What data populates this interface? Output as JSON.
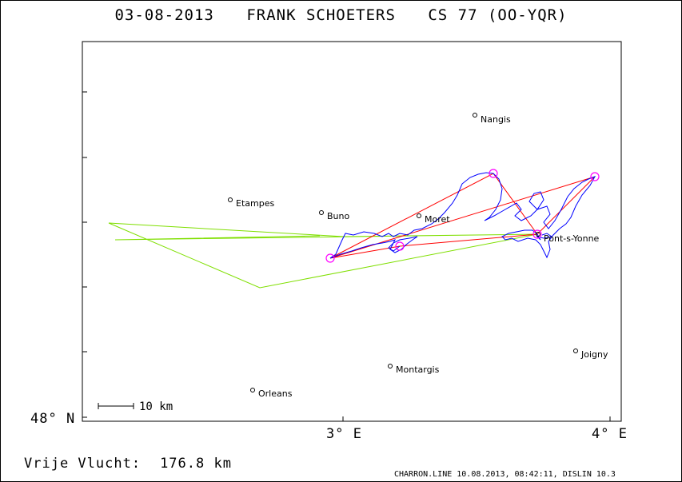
{
  "header": {
    "date": "03-08-2013",
    "pilot": "FRANK SCHOETERS",
    "glider": "CS 77 (OO-YQR)"
  },
  "axes": {
    "lat_label": "48° N",
    "lon_label_1": "3° E",
    "lon_label_2": "4° E"
  },
  "scale_bar": {
    "label": "10 km"
  },
  "towns": [
    {
      "name": "Nangis"
    },
    {
      "name": "Etampes"
    },
    {
      "name": "Buno"
    },
    {
      "name": "Moret"
    },
    {
      "name": "Pont-s-Yonne"
    },
    {
      "name": "Joigny"
    },
    {
      "name": "Montargis"
    },
    {
      "name": "Orleans"
    }
  ],
  "footer": {
    "distance_label": "Vrije Vlucht:",
    "distance_value": "176.8 km",
    "program_info": "CHARRON.LINE 10.08.2013, 08:42:11, DISLIN 10.3"
  },
  "colors": {
    "track": "#0000ff",
    "task": "#ff0000",
    "free_flight": "#7fdf00",
    "turnpoint": "#ff00ff"
  }
}
